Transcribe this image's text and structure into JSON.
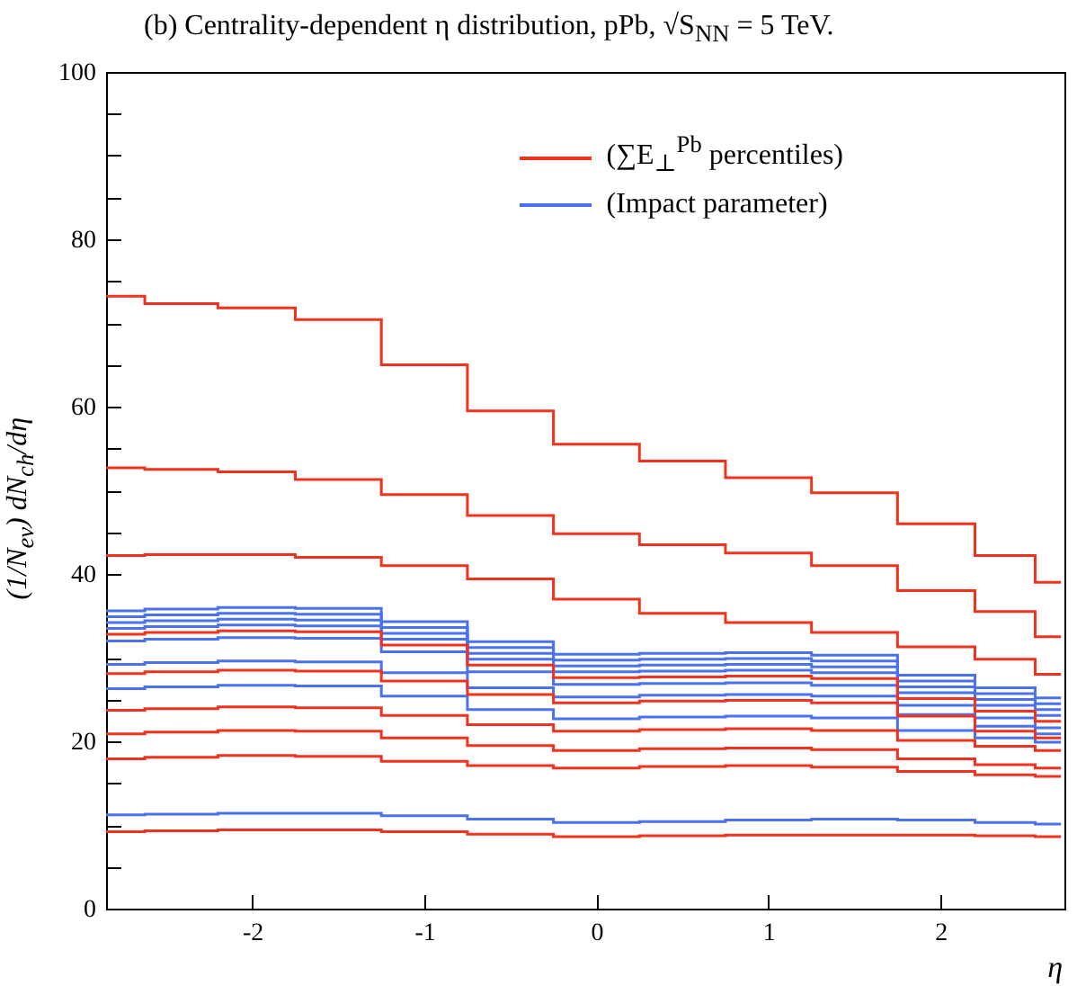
{
  "chart_data": {
    "type": "step",
    "title": "(b) Centrality-dependent η distribution, pPb, √S$_{NN}$ = 5 TeV.",
    "xlabel": "η",
    "ylabel": "(1/N$_{ev}$) dN$_{ch}$/dη",
    "x": [
      -2.85,
      -2.4,
      -2,
      -1.5,
      -1,
      -0.5,
      0,
      0.5,
      1,
      1.5,
      2,
      2.4,
      2.7
    ],
    "xlim": [
      -2.85,
      2.72
    ],
    "xticks": [
      -2,
      -1,
      0,
      1,
      2
    ],
    "ylim": [
      0,
      100
    ],
    "yticks": [
      0,
      {
        "value": 5,
        "label": null
      },
      {
        "value": 10,
        "label": null
      },
      {
        "value": 15,
        "label": null
      },
      20,
      {
        "value": 25,
        "label": null
      },
      {
        "value": 30,
        "label": null
      },
      {
        "value": 35,
        "label": null
      },
      40,
      {
        "value": 45,
        "label": null
      },
      {
        "value": 50,
        "label": null
      },
      {
        "value": 55,
        "label": null
      },
      60,
      {
        "value": 65,
        "label": null
      },
      {
        "value": 70,
        "label": null
      },
      {
        "value": 75,
        "label": null
      },
      80,
      {
        "value": 85,
        "label": null
      },
      {
        "value": 90,
        "label": null
      },
      {
        "value": 95,
        "label": null
      },
      100
    ],
    "grid": false,
    "legend": "top right",
    "series": [
      {
        "name": "(∑E$_{⊥}$$^{Pb}$ percentiles)",
        "color": "#f0321e",
        "values": [
          73.2,
          72.3,
          71.8,
          70.4,
          65,
          59.5,
          55.5,
          53.5,
          51.5,
          49.7,
          46,
          42.2,
          39
        ]
      },
      {
        "color": "#f0321e",
        "values": [
          52.7,
          52.5,
          52.2,
          51.3,
          49.5,
          47,
          44.8,
          43.5,
          42.5,
          41,
          38,
          35.5,
          32.5
        ]
      },
      {
        "color": "#f0321e",
        "values": [
          42.2,
          42.3,
          42.3,
          42,
          41,
          39.4,
          37,
          35.3,
          34.2,
          33,
          31.3,
          29.8,
          28
        ]
      },
      {
        "color": "#f0321e",
        "values": [
          32.8,
          33.0,
          33.2,
          33.1,
          31.5,
          29.1,
          27.6,
          27.7,
          27.8,
          27.5,
          25.1,
          23.6,
          22.4
        ]
      },
      {
        "color": "#f0321e",
        "values": [
          28.1,
          28.3,
          28.5,
          28.4,
          27.2,
          25.6,
          24.6,
          24.8,
          24.9,
          24.6,
          23.0,
          21.2,
          20.4
        ]
      },
      {
        "color": "#f0321e",
        "values": [
          23.7,
          23.9,
          24.1,
          24.0,
          23.1,
          22.0,
          21.2,
          21.4,
          21.5,
          21.3,
          20.1,
          19.4,
          18.9
        ]
      },
      {
        "color": "#f0321e",
        "values": [
          20.9,
          21.1,
          21.3,
          21.2,
          20.4,
          19.5,
          18.9,
          19.1,
          19.2,
          19.0,
          17.9,
          17.2,
          16.8
        ]
      },
      {
        "color": "#f0321e",
        "values": [
          17.9,
          18.1,
          18.3,
          18.2,
          17.6,
          17.1,
          16.8,
          17.0,
          17.1,
          16.9,
          16.4,
          16.0,
          15.8
        ]
      },
      {
        "color": "#f0321e",
        "values": [
          9.2,
          9.3,
          9.4,
          9.4,
          9.2,
          8.9,
          8.6,
          8.7,
          8.8,
          8.8,
          8.8,
          8.7,
          8.6
        ]
      },
      {
        "name": "(Impact parameter)",
        "color": "#4a72f0",
        "values": [
          35.6,
          35.8,
          36.0,
          35.9,
          34.3,
          31.9,
          30.4,
          30.5,
          30.6,
          30.3,
          27.9,
          26.4,
          25.2
        ]
      },
      {
        "color": "#4a72f0",
        "values": [
          34.9,
          35.1,
          35.3,
          35.2,
          33.6,
          31.2,
          29.7,
          29.8,
          29.9,
          29.6,
          27.2,
          25.7,
          24.5
        ]
      },
      {
        "color": "#4a72f0",
        "values": [
          34.2,
          34.4,
          34.6,
          34.5,
          32.9,
          30.5,
          29.0,
          29.1,
          29.2,
          28.9,
          26.5,
          25.0,
          23.8
        ]
      },
      {
        "color": "#4a72f0",
        "values": [
          33.5,
          33.7,
          33.9,
          33.8,
          32.2,
          29.8,
          28.3,
          28.4,
          28.5,
          28.2,
          25.8,
          24.3,
          23.1
        ]
      },
      {
        "color": "#4a72f0",
        "values": [
          32.0,
          32.2,
          32.4,
          32.3,
          30.7,
          28.3,
          26.8,
          26.9,
          27.0,
          26.7,
          24.3,
          22.8,
          21.6
        ]
      },
      {
        "color": "#4a72f0",
        "values": [
          29.2,
          29.4,
          29.6,
          29.5,
          28.2,
          26.4,
          25.3,
          25.5,
          25.6,
          25.4,
          23.2,
          21.8,
          20.9
        ]
      },
      {
        "color": "#4a72f0",
        "values": [
          26.3,
          26.5,
          26.7,
          26.6,
          25.4,
          23.8,
          22.7,
          22.9,
          23.0,
          22.8,
          21.3,
          20.4,
          19.9
        ]
      },
      {
        "color": "#4a72f0",
        "values": [
          11.2,
          11.3,
          11.4,
          11.4,
          11.1,
          10.7,
          10.3,
          10.4,
          10.6,
          10.7,
          10.6,
          10.3,
          10.1
        ]
      }
    ]
  }
}
